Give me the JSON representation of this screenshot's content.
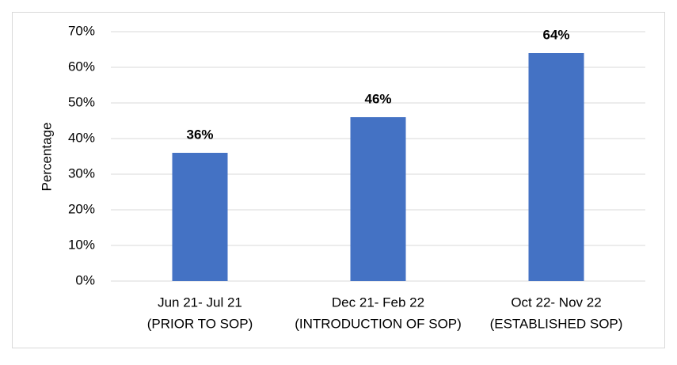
{
  "chart_data": {
    "type": "bar",
    "y_label": "Percentage",
    "categories": [
      [
        "Jun 21- Jul 21",
        "(PRIOR TO SOP)"
      ],
      [
        "Dec 21- Feb 22",
        "(INTRODUCTION OF SOP)"
      ],
      [
        "Oct 22- Nov 22",
        "(ESTABLISHED SOP)"
      ]
    ],
    "values": [
      36,
      46,
      64
    ],
    "value_labels": [
      "36%",
      "46%",
      "64%"
    ],
    "color": "#4472c4",
    "ylim": [
      0,
      70
    ],
    "yticks": [
      {
        "value": 0,
        "label": "0%"
      },
      {
        "value": 10,
        "label": "10%"
      },
      {
        "value": 20,
        "label": "20%"
      },
      {
        "value": 30,
        "label": "30%"
      },
      {
        "value": 40,
        "label": "40%"
      },
      {
        "value": 50,
        "label": "50%"
      },
      {
        "value": 60,
        "label": "60%"
      },
      {
        "value": 70,
        "label": "70%"
      }
    ],
    "grid": true
  }
}
